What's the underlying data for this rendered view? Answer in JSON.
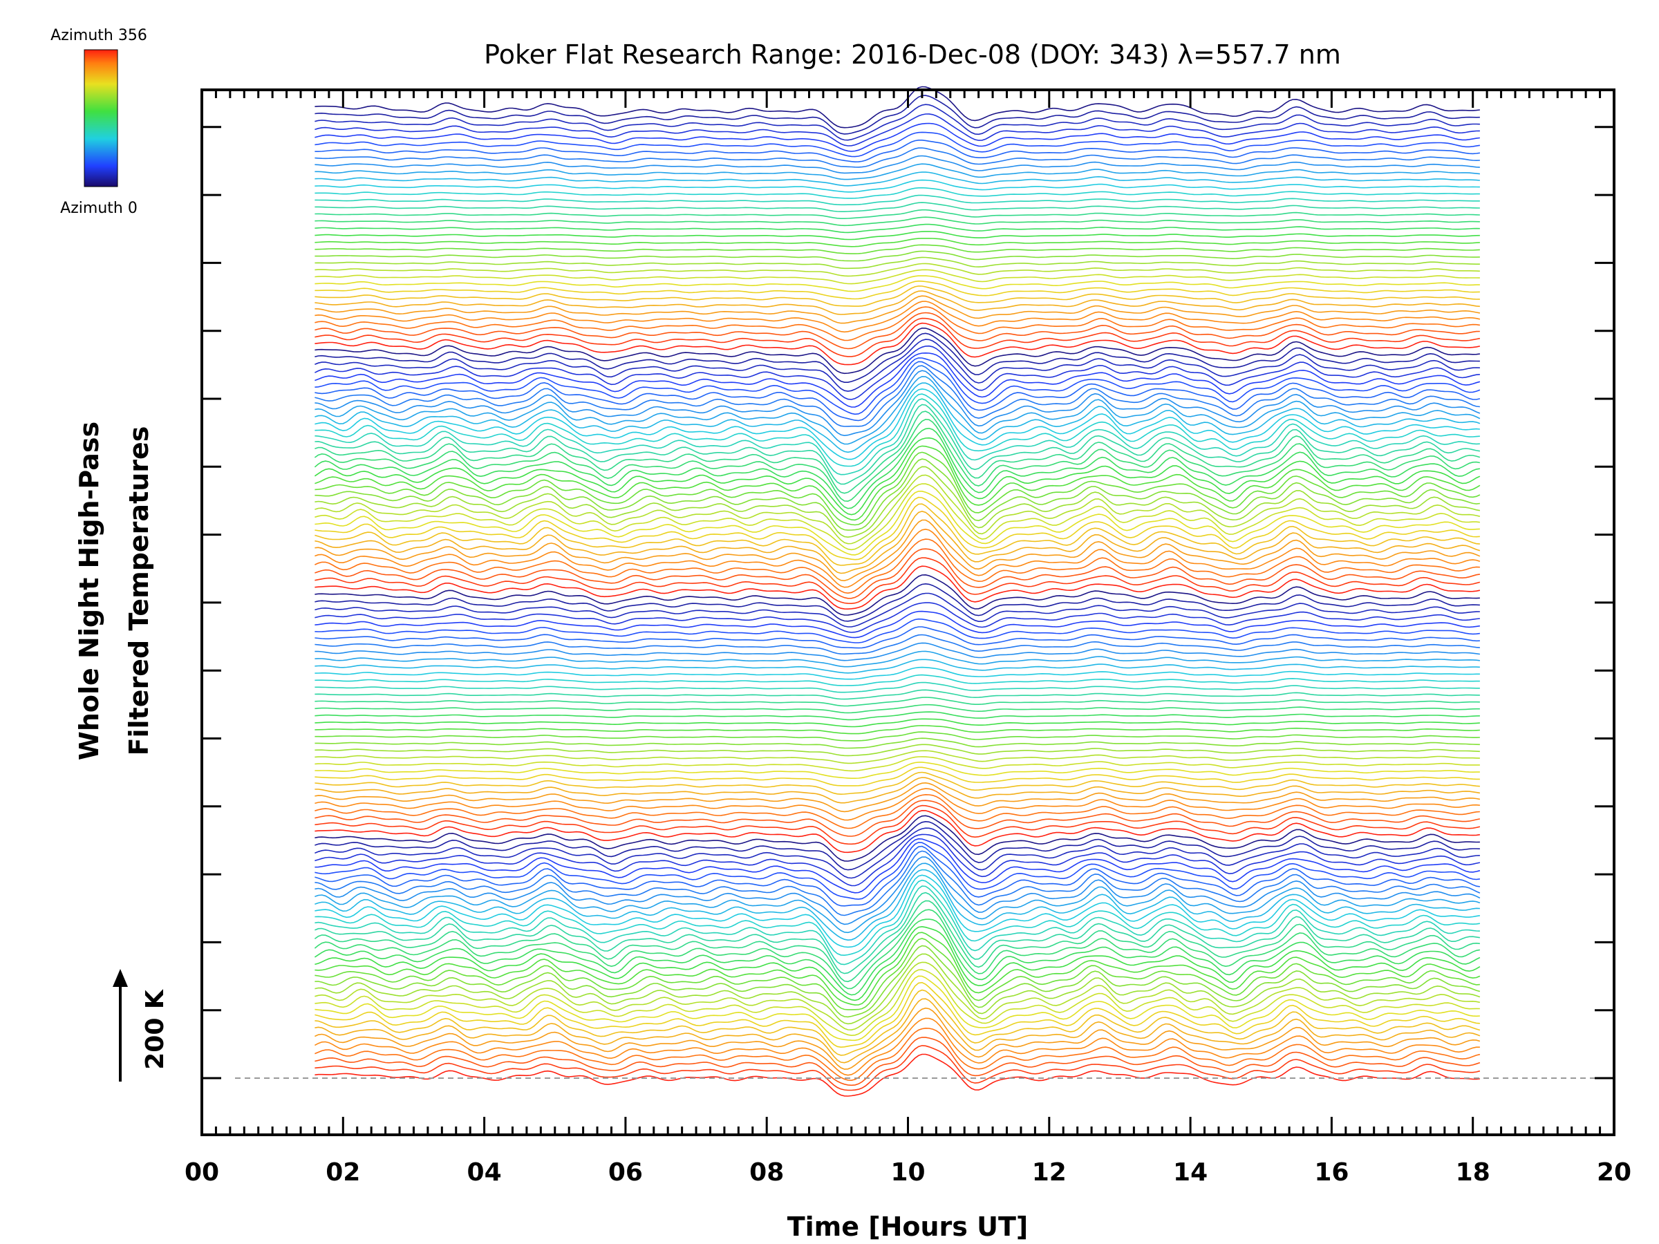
{
  "chart_data": {
    "type": "line",
    "title": "Poker Flat Research Range: 2016-Dec-08 (DOY: 343) λ=557.7 nm",
    "xlabel": "Time [Hours UT]",
    "ylabel_line1": "Whole Night High-Pass",
    "ylabel_line2": "Filtered Temperatures",
    "xlim": [
      0,
      20
    ],
    "x_tick_labels": [
      "00",
      "02",
      "04",
      "06",
      "08",
      "10",
      "12",
      "14",
      "16",
      "18",
      "20"
    ],
    "x_range_data": [
      1.6,
      18.1
    ],
    "scale_bar_label": "200 K",
    "colorbar": {
      "top_label": "Azimuth 356",
      "bottom_label": "Azimuth 0",
      "colormap": "rainbow"
    },
    "baseline_dashed": true,
    "azimuth_cycles": 4,
    "features": [
      {
        "hour": 1.7,
        "amp": 0.5
      },
      {
        "hour": 2.3,
        "amp": 0.6
      },
      {
        "hour": 3.5,
        "amp": 0.7
      },
      {
        "hour": 4.9,
        "amp": 0.9
      },
      {
        "hour": 5.8,
        "amp": -0.6
      },
      {
        "hour": 9.05,
        "amp": -1.6
      },
      {
        "hour": 9.35,
        "amp": -1.3
      },
      {
        "hour": 10.15,
        "amp": 2.4
      },
      {
        "hour": 10.45,
        "amp": 1.5
      },
      {
        "hour": 11.0,
        "amp": -1.2
      },
      {
        "hour": 12.7,
        "amp": 1.0
      },
      {
        "hour": 13.7,
        "amp": 0.8
      },
      {
        "hour": 14.6,
        "amp": -0.8
      },
      {
        "hour": 15.5,
        "amp": 1.2
      },
      {
        "hour": 17.4,
        "amp": 0.5
      }
    ]
  }
}
